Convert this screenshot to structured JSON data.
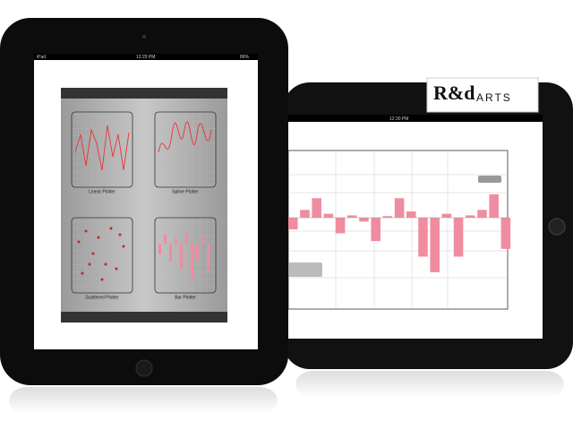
{
  "left_screen": {
    "status": {
      "device": "iPad",
      "time": "12:29 PM",
      "battery": "86%"
    },
    "cards": [
      "Linear Plotter",
      "Spline Plotter",
      "Scattered Plotter",
      "Bar Plotter"
    ]
  },
  "right_screen": {
    "status": {
      "time": "12:30 PM"
    },
    "chart": {
      "type": "bar",
      "values": [
        -15,
        10,
        25,
        5,
        -20,
        3,
        -5,
        -30,
        2,
        25,
        8,
        -50,
        -70,
        5,
        -50,
        3,
        10,
        30,
        -40
      ],
      "ylim": [
        -100,
        100
      ],
      "color": "#f08ca0"
    }
  },
  "brand": {
    "logo": "R&d",
    "name": "ARTS"
  }
}
